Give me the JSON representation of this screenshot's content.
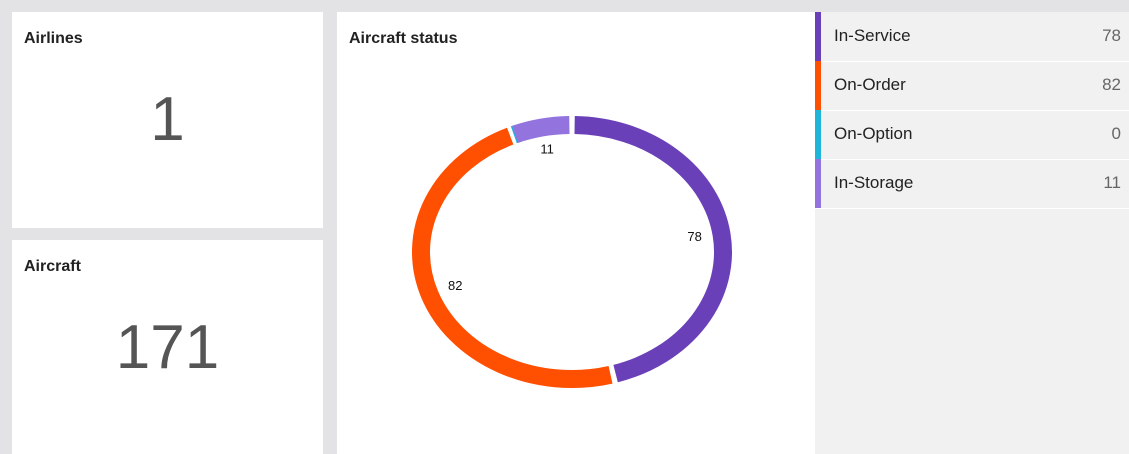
{
  "cards": [
    {
      "title": "Airlines",
      "value": 1
    },
    {
      "title": "Aircraft",
      "value": 171
    }
  ],
  "chart_data": {
    "type": "pie",
    "title": "Aircraft status",
    "categories": [
      "In-Service",
      "On-Order",
      "On-Option",
      "In-Storage"
    ],
    "values": [
      78,
      82,
      0,
      11
    ],
    "colors": [
      "#6a40b8",
      "#ff4f00",
      "#1fb5d9",
      "#9373de"
    ]
  }
}
